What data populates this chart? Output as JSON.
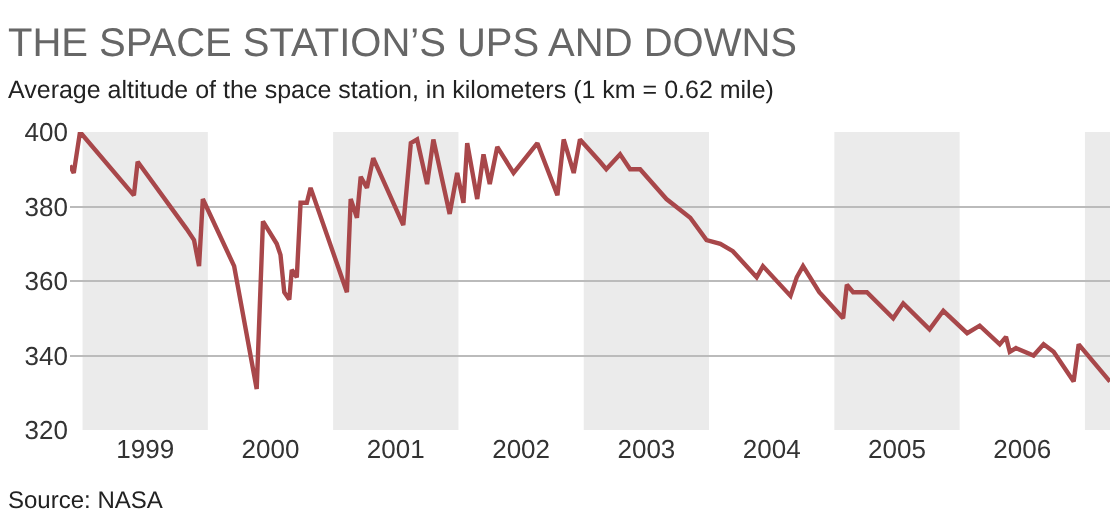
{
  "chart_data": {
    "type": "line",
    "title": "THE SPACE STATION’S UPS AND DOWNS",
    "subtitle": "Average altitude of the space station, in kilometers (1 km = 0.62 mile)",
    "annotations": [
      "Source: NASA"
    ],
    "x": [
      1998.9,
      1998.93,
      1998.98,
      1999.41,
      1999.44,
      1999.83,
      1999.89,
      1999.93,
      1999.96,
      2000.21,
      2000.39,
      2000.44,
      2000.55,
      2000.58,
      2000.61,
      2000.65,
      2000.67,
      2000.71,
      2000.74,
      2000.79,
      2000.82,
      2001.11,
      2001.14,
      2001.19,
      2001.22,
      2001.27,
      2001.32,
      2001.56,
      2001.62,
      2001.67,
      2001.75,
      2001.8,
      2001.93,
      2001.99,
      2002.04,
      2002.07,
      2002.15,
      2002.2,
      2002.25,
      2002.31,
      2002.44,
      2002.63,
      2002.79,
      2002.84,
      2002.92,
      2002.97,
      2003.13,
      2003.18,
      2003.29,
      2003.37,
      2003.45,
      2003.66,
      2003.85,
      2003.98,
      2004.09,
      2004.19,
      2004.38,
      2004.43,
      2004.65,
      2004.7,
      2004.75,
      2004.88,
      2005.07,
      2005.1,
      2005.15,
      2005.26,
      2005.47,
      2005.55,
      2005.76,
      2005.87,
      2006.06,
      2006.16,
      2006.32,
      2006.37,
      2006.4,
      2006.45,
      2006.59,
      2006.67,
      2006.75,
      2006.91,
      2006.95,
      2007.2
    ],
    "series": [
      {
        "color": "#a8474a",
        "values": [
          391,
          389,
          400,
          383,
          392,
          374,
          371,
          364,
          382,
          364,
          331,
          376,
          370,
          367,
          357,
          355,
          363,
          361,
          381,
          381,
          385,
          357,
          382,
          377,
          388,
          385,
          393,
          375,
          397,
          398,
          386,
          398,
          378,
          389,
          381,
          397,
          382,
          394,
          386,
          396,
          389,
          397,
          383,
          398,
          389,
          398,
          392,
          390,
          394,
          390,
          390,
          382,
          377,
          371,
          370,
          368,
          361,
          364,
          356,
          361,
          364,
          357,
          350,
          359,
          357,
          357,
          350,
          354,
          347,
          352,
          346,
          348,
          343,
          345,
          341,
          342,
          340,
          343,
          341,
          333,
          343,
          333
        ]
      }
    ],
    "xlim": [
      1998.9,
      2007.2
    ],
    "xticks": [
      {
        "value": 1999.5,
        "label": "1999"
      },
      {
        "value": 2000.5,
        "label": "2000"
      },
      {
        "value": 2001.5,
        "label": "2001"
      },
      {
        "value": 2002.5,
        "label": "2002"
      },
      {
        "value": 2003.5,
        "label": "2003"
      },
      {
        "value": 2004.5,
        "label": "2004"
      },
      {
        "value": 2005.5,
        "label": "2005"
      },
      {
        "value": 2006.5,
        "label": "2006"
      }
    ],
    "ylim": [
      320,
      400
    ],
    "yticks": [
      320,
      340,
      360,
      380,
      400
    ],
    "grid": "y",
    "line_style": "solid",
    "bands": [
      {
        "axis": "x",
        "from": 1999,
        "to": 2000,
        "color": "#ebebeb"
      },
      {
        "axis": "x",
        "from": 2001,
        "to": 2002,
        "color": "#ebebeb"
      },
      {
        "axis": "x",
        "from": 2003,
        "to": 2004,
        "color": "#ebebeb"
      },
      {
        "axis": "x",
        "from": 2005,
        "to": 2006,
        "color": "#ebebeb"
      },
      {
        "axis": "x",
        "from": 2007,
        "to": 2007.2,
        "color": "#ebebeb"
      }
    ]
  }
}
